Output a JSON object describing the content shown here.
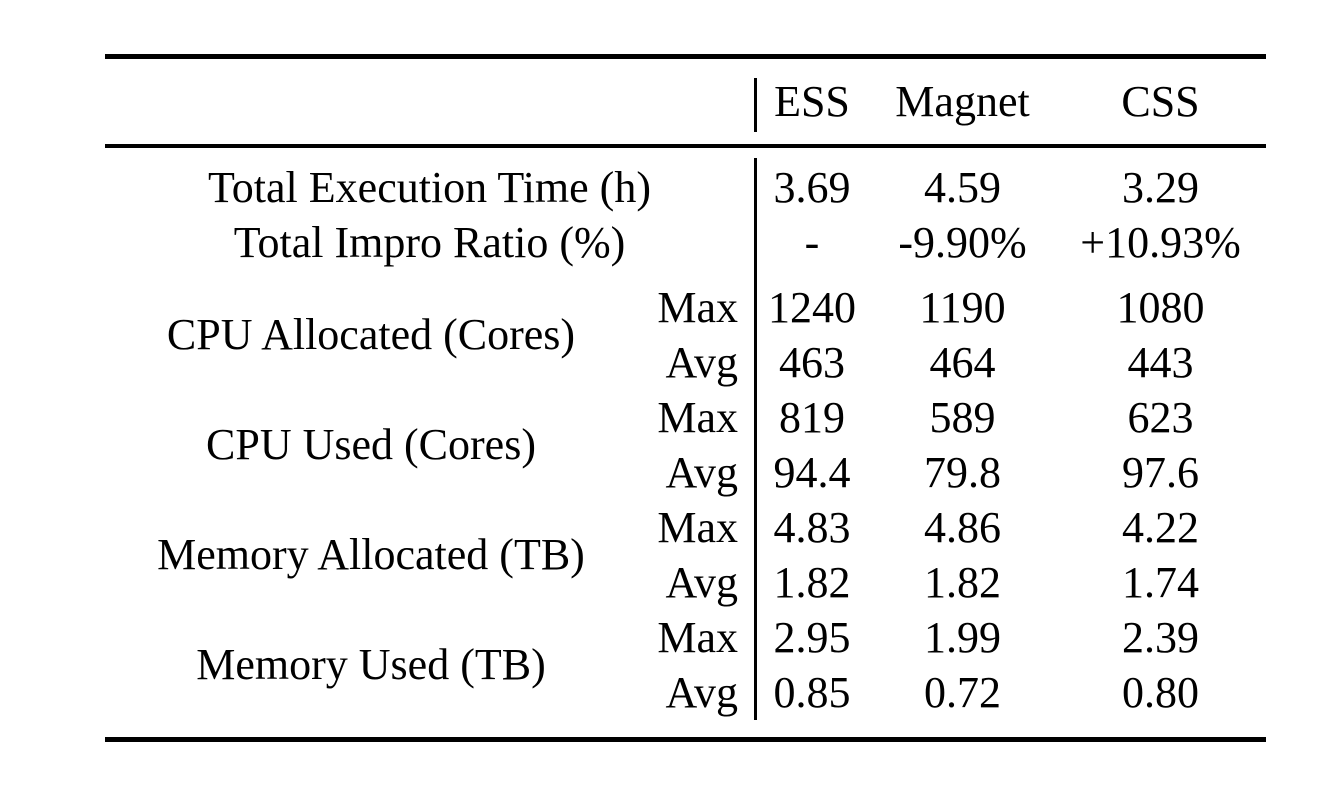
{
  "colors": {
    "background": "#ffffff",
    "text": "#000000",
    "rule": "#000000"
  },
  "table": {
    "columns": [
      "ESS",
      "Magnet",
      "CSS"
    ],
    "simple_rows": [
      {
        "label": "Total Execution Time (h)",
        "values": [
          "3.69",
          "4.59",
          "3.29"
        ]
      },
      {
        "label": "Total Impro Ratio (%)",
        "values": [
          "-",
          "-9.90%",
          "+10.93%"
        ]
      }
    ],
    "sub_labels": {
      "max": "Max",
      "avg": "Avg"
    },
    "group_rows": [
      {
        "label": "CPU Allocated (Cores)",
        "max": [
          "1240",
          "1190",
          "1080"
        ],
        "avg": [
          "463",
          "464",
          "443"
        ]
      },
      {
        "label": "CPU Used (Cores)",
        "max": [
          "819",
          "589",
          "623"
        ],
        "avg": [
          "94.4",
          "79.8",
          "97.6"
        ]
      },
      {
        "label": "Memory Allocated (TB)",
        "max": [
          "4.83",
          "4.86",
          "4.22"
        ],
        "avg": [
          "1.82",
          "1.82",
          "1.74"
        ]
      },
      {
        "label": "Memory Used (TB)",
        "max": [
          "2.95",
          "1.99",
          "2.39"
        ],
        "avg": [
          "0.85",
          "0.72",
          "0.80"
        ]
      }
    ]
  }
}
